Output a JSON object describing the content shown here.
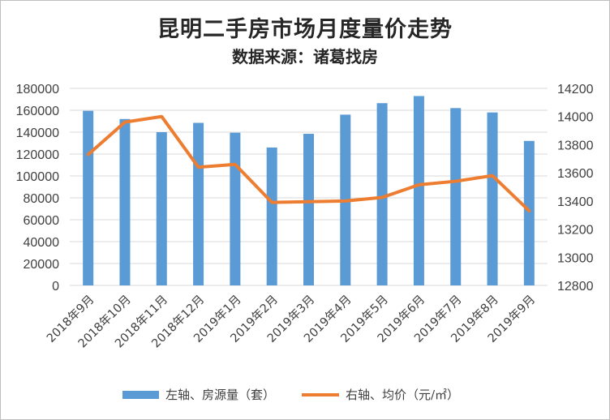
{
  "title": "昆明二手房市场月度量价走势",
  "subtitle": "数据来源：诸葛找房",
  "colors": {
    "bar": "#5b9bd5",
    "line": "#ed7d31",
    "grid": "#d9d9d9",
    "axis_text": "#404040"
  },
  "chart_data": {
    "type": "bar",
    "categories": [
      "2018年9月",
      "2018年10月",
      "2018年11月",
      "2018年12月",
      "2019年1月",
      "2019年2月",
      "2019年3月",
      "2019年4月",
      "2019年5月",
      "2019年6月",
      "2019年7月",
      "2019年8月",
      "2019年9月"
    ],
    "series": [
      {
        "name": "左轴、房源量（套）",
        "type": "bar",
        "axis": "left",
        "values": [
          159500,
          152000,
          140000,
          148500,
          139500,
          126000,
          138500,
          156000,
          166500,
          173000,
          162000,
          158000,
          132000
        ]
      },
      {
        "name": "右轴、均价（元/㎡）",
        "type": "line",
        "axis": "right",
        "values": [
          13730,
          13960,
          14000,
          13640,
          13660,
          13390,
          13395,
          13400,
          13425,
          13515,
          13540,
          13580,
          13330
        ]
      }
    ],
    "left_axis": {
      "min": 0,
      "max": 180000,
      "ticks": [
        "0",
        "20000",
        "40000",
        "60000",
        "80000",
        "100000",
        "120000",
        "140000",
        "160000",
        "180000"
      ]
    },
    "right_axis": {
      "min": 12800,
      "max": 14200,
      "ticks": [
        "12800",
        "13000",
        "13200",
        "13400",
        "13600",
        "13800",
        "14000",
        "14200"
      ]
    },
    "grid": true,
    "legend_position": "bottom"
  }
}
